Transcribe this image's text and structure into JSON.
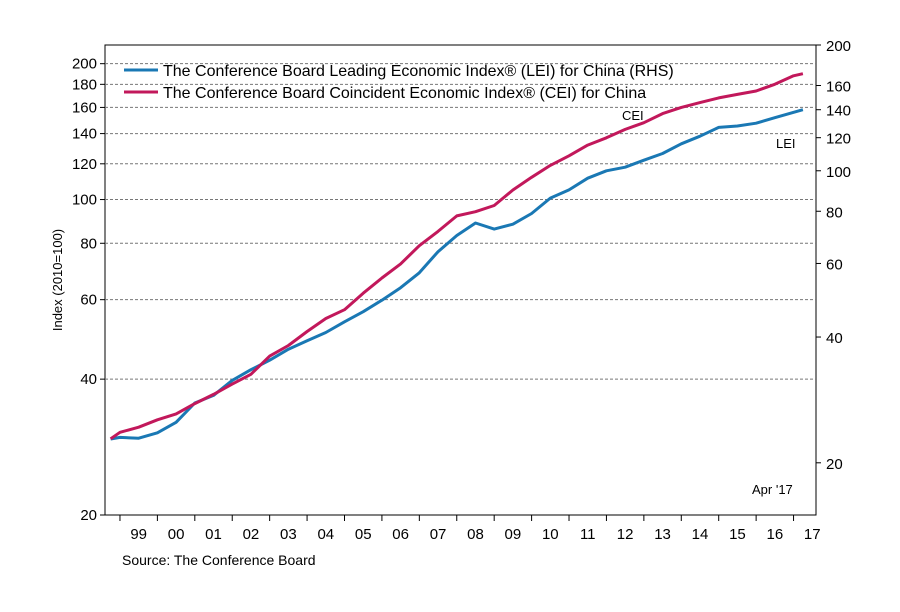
{
  "chart_data": {
    "type": "line",
    "source_text": "Source: The Conference Board",
    "ylabel_left": "Index (2010=100)",
    "yscale": "log",
    "left_axis": {
      "ylim": [
        20,
        220
      ],
      "ticks": [
        20,
        40,
        60,
        80,
        100,
        120,
        140,
        160,
        180,
        200
      ]
    },
    "right_axis": {
      "ylim": [
        15,
        200
      ],
      "ticks": [
        20,
        40,
        60,
        80,
        100,
        120,
        140,
        160,
        200
      ]
    },
    "x_ticks": [
      "99",
      "00",
      "01",
      "02",
      "03",
      "04",
      "05",
      "06",
      "07",
      "08",
      "09",
      "10",
      "11",
      "12",
      "13",
      "14",
      "15",
      "16",
      "17"
    ],
    "annotations": {
      "cei": "CEI",
      "lei": "LEI",
      "date": "Apr '17"
    },
    "grid": "horizontal dashed",
    "legend_position": "top-left",
    "colors": {
      "lei": "#1a78b4",
      "cei": "#c2185b"
    },
    "series": [
      {
        "key": "lei",
        "name": "The Conference Board Leading Economic Index® (LEI) for China (RHS)",
        "axis": "right",
        "x": [
          1998.75,
          1999.0,
          1999.5,
          2000.0,
          2000.5,
          2001.0,
          2001.5,
          2002.0,
          2002.5,
          2003.0,
          2003.5,
          2004.0,
          2004.5,
          2005.0,
          2005.5,
          2006.0,
          2006.5,
          2007.0,
          2007.5,
          2008.0,
          2008.5,
          2009.0,
          2009.5,
          2010.0,
          2010.5,
          2011.0,
          2011.5,
          2012.0,
          2012.5,
          2013.0,
          2013.5,
          2014.0,
          2014.5,
          2015.0,
          2015.5,
          2016.0,
          2016.5,
          2017.25
        ],
        "values": [
          22.8,
          23.0,
          22.9,
          23.6,
          25.0,
          27.8,
          29.0,
          31.5,
          33.4,
          35.2,
          37.4,
          39.2,
          41.0,
          43.5,
          46.0,
          49.0,
          52.5,
          57.0,
          64.0,
          70.0,
          75.0,
          72.5,
          74.5,
          79.0,
          86.0,
          90.0,
          96.0,
          100.0,
          102.0,
          106.0,
          110.0,
          116.0,
          121.0,
          127.0,
          128.0,
          130.0,
          134.0,
          140.0
        ]
      },
      {
        "key": "cei",
        "name": "The Conference Board Coincident Economic Index® (CEI) for China",
        "axis": "left",
        "x": [
          1998.75,
          1999.0,
          1999.5,
          2000.0,
          2000.5,
          2001.0,
          2001.5,
          2002.0,
          2002.5,
          2003.0,
          2003.5,
          2004.0,
          2004.5,
          2005.0,
          2005.5,
          2006.0,
          2006.5,
          2007.0,
          2007.5,
          2008.0,
          2008.5,
          2009.0,
          2009.5,
          2010.0,
          2010.5,
          2011.0,
          2011.5,
          2012.0,
          2012.5,
          2013.0,
          2013.5,
          2014.0,
          2014.5,
          2015.0,
          2015.5,
          2016.0,
          2016.5,
          2017.0,
          2017.25
        ],
        "values": [
          29.5,
          30.5,
          31.3,
          32.5,
          33.5,
          35.3,
          37.0,
          39.0,
          41.0,
          45.0,
          47.5,
          51.0,
          54.5,
          57.0,
          62.0,
          67.0,
          72.0,
          79.0,
          85.0,
          92.0,
          94.0,
          97.0,
          105.0,
          112.0,
          119.0,
          125.0,
          132.0,
          137.0,
          143.0,
          148.0,
          155.0,
          160.0,
          164.0,
          168.0,
          171.0,
          174.0,
          180.0,
          188.0,
          190.0
        ]
      }
    ]
  }
}
